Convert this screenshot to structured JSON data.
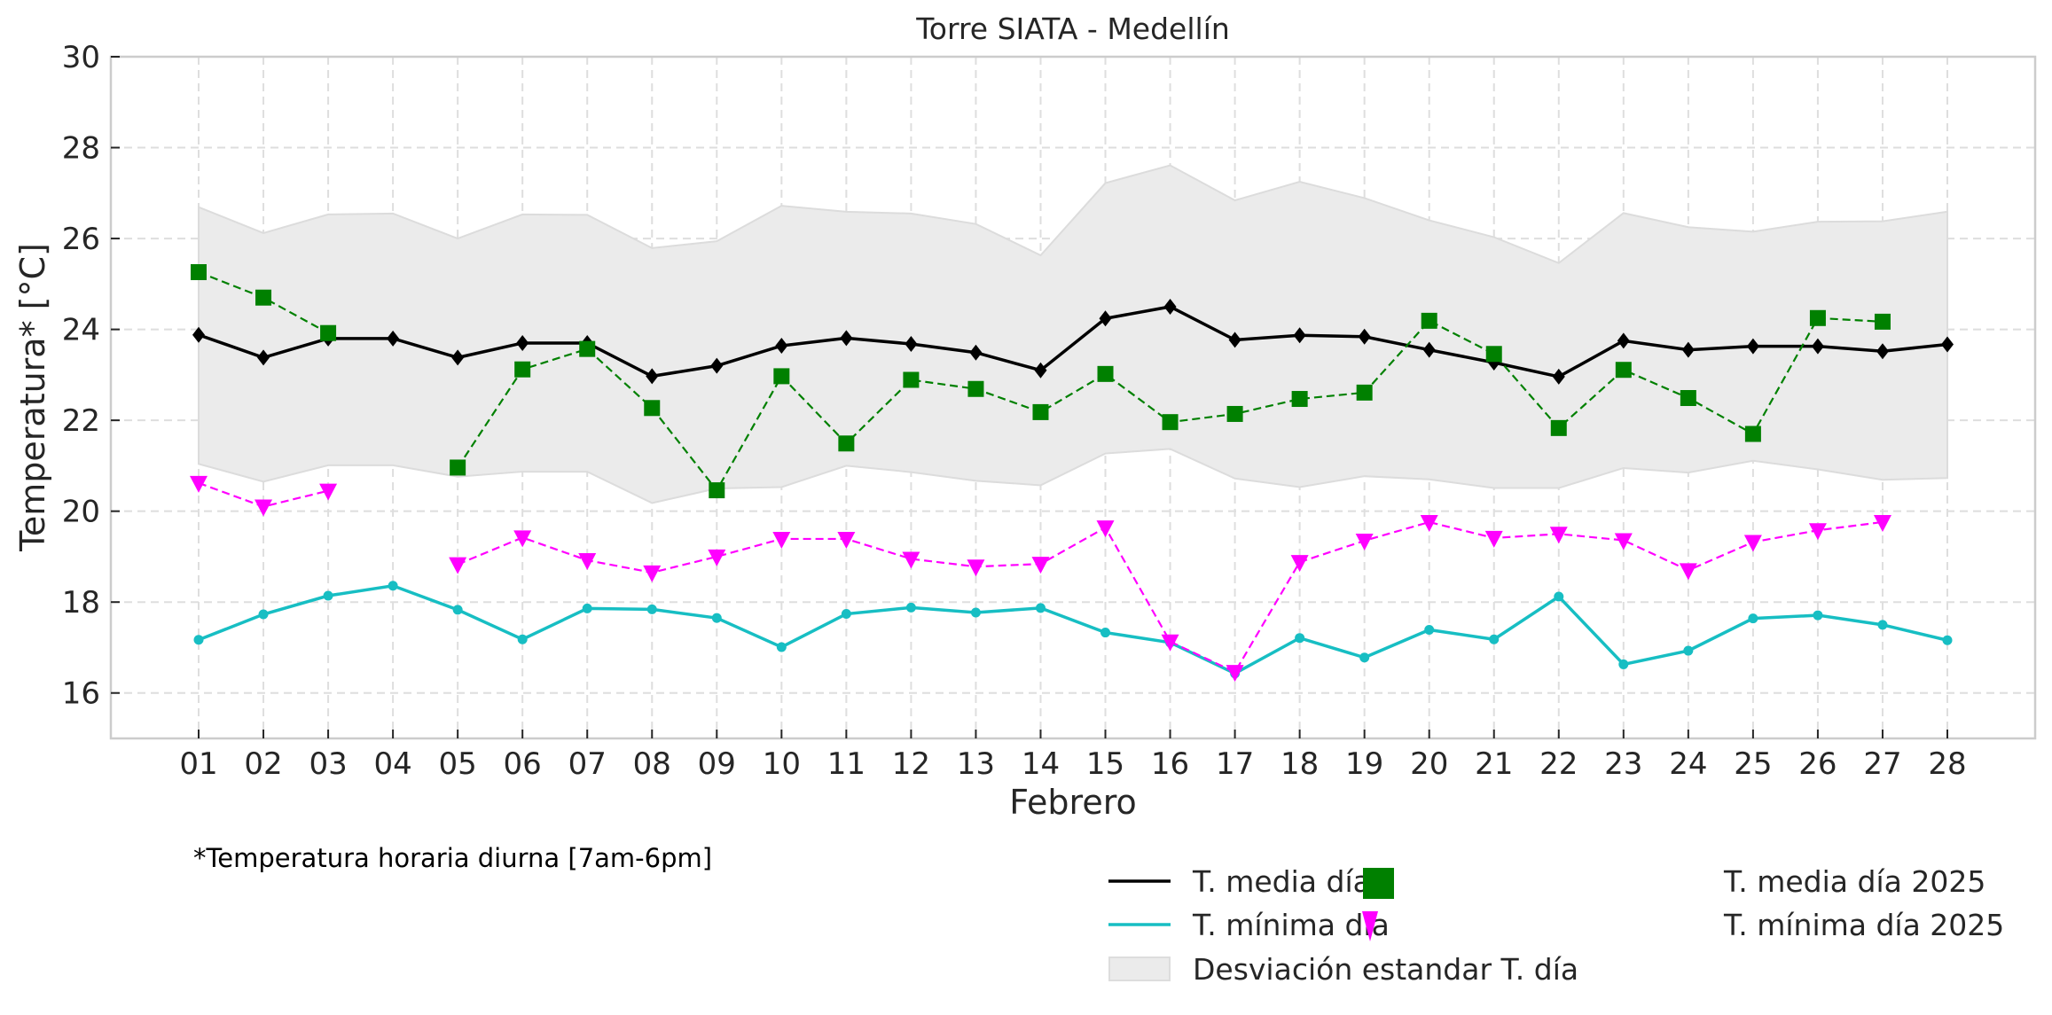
{
  "chart_data": {
    "type": "line",
    "title": "Torre SIATA - Medellín",
    "xlabel": "Febrero",
    "ylabel": "Temperatura* [°C]",
    "footnote": "*Temperatura horaria diurna [7am-6pm]",
    "ylim": [
      15,
      30
    ],
    "yticks": [
      16,
      18,
      20,
      22,
      24,
      26,
      28,
      30
    ],
    "ytick_labels": [
      "16",
      "18",
      "20",
      "22",
      "24",
      "26",
      "28",
      "30"
    ],
    "grid": true,
    "legend_position": "bottom-right",
    "categories": [
      "01",
      "02",
      "03",
      "04",
      "05",
      "06",
      "07",
      "08",
      "09",
      "10",
      "11",
      "12",
      "13",
      "14",
      "15",
      "16",
      "17",
      "18",
      "19",
      "20",
      "21",
      "22",
      "23",
      "24",
      "25",
      "26",
      "27",
      "28"
    ],
    "band": {
      "name": "Desviación estandar T. día",
      "color": "#ebebeb",
      "upper": [
        26.69,
        26.12,
        26.53,
        26.55,
        26.0,
        26.53,
        26.52,
        25.79,
        25.94,
        26.72,
        26.59,
        26.55,
        26.32,
        25.63,
        27.22,
        27.61,
        26.84,
        27.25,
        26.89,
        26.4,
        26.03,
        25.46,
        26.56,
        26.25,
        26.15,
        26.37,
        26.38,
        26.59
      ],
      "lower": [
        21.04,
        20.65,
        21.01,
        21.01,
        20.76,
        20.87,
        20.87,
        20.18,
        20.5,
        20.53,
        21.0,
        20.86,
        20.67,
        20.57,
        21.27,
        21.37,
        20.72,
        20.53,
        20.77,
        20.7,
        20.51,
        20.51,
        20.95,
        20.85,
        21.11,
        20.92,
        20.69,
        20.73
      ]
    },
    "series": [
      {
        "name": "T. media día",
        "color": "#000000",
        "style": "solid",
        "marker": "diamond",
        "values": [
          23.88,
          23.38,
          23.8,
          23.8,
          23.38,
          23.7,
          23.7,
          22.97,
          23.2,
          23.64,
          23.81,
          23.68,
          23.49,
          23.1,
          24.24,
          24.5,
          23.77,
          23.87,
          23.84,
          23.55,
          23.27,
          22.96,
          23.75,
          23.55,
          23.63,
          23.63,
          23.52,
          23.67
        ]
      },
      {
        "name": "T. mínima día",
        "color": "#17bec3",
        "style": "solid",
        "marker": "circle",
        "values": [
          17.17,
          17.73,
          18.14,
          18.36,
          17.83,
          17.18,
          17.86,
          17.84,
          17.65,
          17.01,
          17.74,
          17.88,
          17.77,
          17.87,
          17.33,
          17.11,
          16.43,
          17.21,
          16.78,
          17.39,
          17.18,
          18.12,
          16.63,
          16.93,
          17.64,
          17.71,
          17.5,
          17.16
        ]
      },
      {
        "name": "T. media día 2025",
        "color": "#008000",
        "style": "dashed",
        "marker": "square",
        "values": [
          25.26,
          24.7,
          23.92,
          null,
          20.96,
          23.12,
          23.57,
          22.27,
          20.46,
          22.97,
          21.49,
          22.89,
          22.69,
          22.18,
          23.02,
          21.96,
          22.14,
          22.47,
          22.61,
          24.19,
          23.46,
          21.83,
          23.11,
          22.49,
          21.7,
          24.25,
          24.17,
          null
        ]
      },
      {
        "name": "T. mínima día 2025",
        "color": "#ff00ff",
        "style": "dashed",
        "marker": "triangle-down",
        "values": [
          20.62,
          20.1,
          20.45,
          null,
          18.83,
          19.42,
          18.92,
          18.65,
          19.0,
          19.39,
          19.39,
          18.95,
          18.78,
          18.84,
          19.64,
          17.13,
          16.46,
          18.88,
          19.35,
          19.76,
          19.41,
          19.5,
          19.36,
          18.7,
          19.32,
          19.58,
          19.76,
          null
        ]
      }
    ]
  }
}
